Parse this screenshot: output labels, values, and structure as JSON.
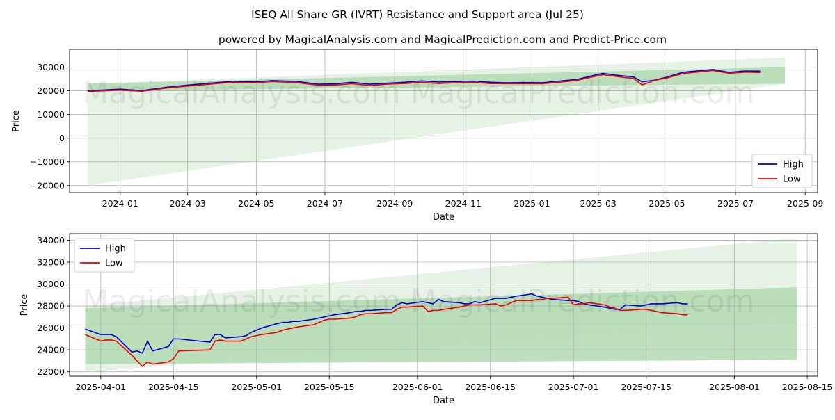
{
  "title": "ISEQ All Share GR (IVRT) Resistance and Support area (Jul 25)",
  "subtitle": "powered by MagicalAnalysis.com and MagicalPrediction.com and Predict-Price.com",
  "watermarks": [
    "MagicalAnalysis.com",
    "MagicalPrediction.com"
  ],
  "colors": {
    "high": "#0000cc",
    "low": "#ee0000",
    "band_light": "#e6f2e6",
    "band_dark": "#b2d9b2",
    "grid": "#b0b0b0"
  },
  "chart_data": [
    {
      "type": "line",
      "xlabel": "Date",
      "ylabel": "Price",
      "grid": true,
      "legend": "bottom-right",
      "x_range": [
        "2023-11-17",
        "2025-09-12"
      ],
      "ylim": [
        -23000,
        37500
      ],
      "x_ticks": [
        "2024-01",
        "2024-03",
        "2024-05",
        "2024-07",
        "2024-09",
        "2024-11",
        "2025-01",
        "2025-03",
        "2025-05",
        "2025-07",
        "2025-09"
      ],
      "y_ticks": [
        -20000,
        -10000,
        0,
        10000,
        20000,
        30000
      ],
      "bands": [
        {
          "shade": "light",
          "x": [
            "2023-12-03",
            "2025-08-14"
          ],
          "upper": [
            23000,
            34000
          ],
          "lower": [
            -20000,
            23000
          ]
        },
        {
          "shade": "dark",
          "x": [
            "2023-12-03",
            "2025-08-14"
          ],
          "upper": [
            23000,
            30000
          ],
          "lower": [
            20000,
            23000
          ]
        }
      ],
      "x": [
        "2023-12-03",
        "2024-01-01",
        "2024-01-20",
        "2024-02-15",
        "2024-03-01",
        "2024-03-20",
        "2024-04-10",
        "2024-04-30",
        "2024-05-15",
        "2024-06-05",
        "2024-06-25",
        "2024-07-10",
        "2024-07-25",
        "2024-08-10",
        "2024-08-25",
        "2024-09-10",
        "2024-09-25",
        "2024-10-10",
        "2024-10-25",
        "2024-11-10",
        "2024-11-25",
        "2024-12-10",
        "2024-12-25",
        "2025-01-10",
        "2025-01-25",
        "2025-02-10",
        "2025-02-25",
        "2025-03-05",
        "2025-03-15",
        "2025-03-25",
        "2025-04-01",
        "2025-04-09",
        "2025-04-20",
        "2025-05-01",
        "2025-05-15",
        "2025-05-30",
        "2025-06-11",
        "2025-06-25",
        "2025-07-10",
        "2025-07-23"
      ],
      "series": [
        {
          "name": "High",
          "values": [
            20000,
            20700,
            20100,
            21700,
            22400,
            23200,
            24000,
            23800,
            24300,
            24000,
            22800,
            22900,
            23600,
            22800,
            23200,
            23600,
            24200,
            23700,
            23900,
            24100,
            23600,
            23400,
            23500,
            23400,
            24100,
            24800,
            26500,
            27400,
            26700,
            26200,
            25900,
            23800,
            24500,
            25800,
            27800,
            28500,
            29000,
            27800,
            28400,
            28300
          ]
        },
        {
          "name": "Low",
          "values": [
            19700,
            20300,
            19800,
            21400,
            22000,
            22800,
            23600,
            23400,
            23900,
            23500,
            22400,
            22400,
            23000,
            22200,
            22800,
            23100,
            23600,
            23100,
            23400,
            23600,
            23100,
            23000,
            23000,
            23000,
            23600,
            24400,
            26000,
            26800,
            26200,
            25600,
            25300,
            22500,
            24400,
            25400,
            27300,
            28000,
            28600,
            27400,
            27900,
            27700
          ]
        }
      ]
    },
    {
      "type": "line",
      "xlabel": "Date",
      "ylabel": "Price",
      "grid": true,
      "legend": "top-left",
      "x_range": [
        "2025-03-26",
        "2025-08-17"
      ],
      "ylim": [
        21600,
        34600
      ],
      "x_ticks": [
        "2025-04-01",
        "2025-04-15",
        "2025-05-01",
        "2025-05-15",
        "2025-06-01",
        "2025-06-15",
        "2025-07-01",
        "2025-07-15",
        "2025-08-01",
        "2025-08-15"
      ],
      "y_ticks": [
        22000,
        24000,
        26000,
        28000,
        30000,
        32000,
        34000
      ],
      "bands": [
        {
          "shade": "light",
          "x": [
            "2025-03-29",
            "2025-08-13"
          ],
          "upper": [
            28000,
            34200
          ],
          "lower": [
            22000,
            26700
          ]
        },
        {
          "shade": "dark",
          "x": [
            "2025-03-29",
            "2025-08-13"
          ],
          "upper": [
            27800,
            29700
          ],
          "lower": [
            22700,
            23100
          ]
        }
      ],
      "x": [
        "2025-03-29",
        "2025-04-01",
        "2025-04-02",
        "2025-04-03",
        "2025-04-04",
        "2025-04-07",
        "2025-04-08",
        "2025-04-09",
        "2025-04-10",
        "2025-04-11",
        "2025-04-14",
        "2025-04-15",
        "2025-04-16",
        "2025-04-22",
        "2025-04-23",
        "2025-04-24",
        "2025-04-25",
        "2025-04-28",
        "2025-04-29",
        "2025-04-30",
        "2025-05-01",
        "2025-05-02",
        "2025-05-05",
        "2025-05-06",
        "2025-05-07",
        "2025-05-08",
        "2025-05-09",
        "2025-05-12",
        "2025-05-13",
        "2025-05-14",
        "2025-05-15",
        "2025-05-16",
        "2025-05-19",
        "2025-05-20",
        "2025-05-21",
        "2025-05-22",
        "2025-05-23",
        "2025-05-26",
        "2025-05-27",
        "2025-05-28",
        "2025-05-29",
        "2025-05-30",
        "2025-06-02",
        "2025-06-03",
        "2025-06-04",
        "2025-06-05",
        "2025-06-06",
        "2025-06-09",
        "2025-06-10",
        "2025-06-11",
        "2025-06-12",
        "2025-06-13",
        "2025-06-16",
        "2025-06-17",
        "2025-06-18",
        "2025-06-19",
        "2025-06-20",
        "2025-06-23",
        "2025-06-24",
        "2025-06-25",
        "2025-06-26",
        "2025-06-27",
        "2025-06-30",
        "2025-07-01",
        "2025-07-02",
        "2025-07-03",
        "2025-07-04",
        "2025-07-07",
        "2025-07-08",
        "2025-07-09",
        "2025-07-10",
        "2025-07-11",
        "2025-07-14",
        "2025-07-15",
        "2025-07-16",
        "2025-07-17",
        "2025-07-18",
        "2025-07-21",
        "2025-07-22",
        "2025-07-23"
      ],
      "series": [
        {
          "name": "High",
          "values": [
            25900,
            25400,
            25400,
            25400,
            25200,
            23800,
            23900,
            23700,
            24800,
            23900,
            24300,
            25000,
            25000,
            24700,
            25400,
            25400,
            25100,
            25200,
            25300,
            25600,
            25800,
            26000,
            26400,
            26500,
            26500,
            26600,
            26600,
            26800,
            26900,
            27000,
            27100,
            27200,
            27400,
            27500,
            27500,
            27600,
            27600,
            27700,
            27700,
            28100,
            28300,
            28200,
            28400,
            28300,
            28200,
            28600,
            28400,
            28300,
            28200,
            28200,
            28400,
            28300,
            28700,
            28700,
            28700,
            28800,
            28900,
            29100,
            28900,
            28800,
            28700,
            28600,
            28500,
            28500,
            28400,
            28200,
            28100,
            27900,
            27800,
            27700,
            27700,
            28100,
            28000,
            28100,
            28200,
            28200,
            28200,
            28300,
            28200,
            28200
          ]
        },
        {
          "name": "Low",
          "values": [
            25400,
            24800,
            24900,
            24900,
            24800,
            23500,
            23000,
            22500,
            22900,
            22700,
            22900,
            23200,
            23900,
            24000,
            24800,
            24900,
            24800,
            24800,
            25000,
            25200,
            25300,
            25400,
            25600,
            25800,
            25900,
            26000,
            26100,
            26300,
            26500,
            26700,
            26800,
            26800,
            26900,
            27000,
            27200,
            27300,
            27300,
            27400,
            27400,
            27700,
            27900,
            27900,
            28000,
            27500,
            27600,
            27600,
            27700,
            27900,
            28000,
            28100,
            28100,
            28100,
            28200,
            28000,
            28100,
            28300,
            28500,
            28500,
            28600,
            28600,
            28700,
            28700,
            28800,
            28100,
            28200,
            28200,
            28300,
            28100,
            27900,
            27800,
            27600,
            27600,
            27700,
            27700,
            27600,
            27500,
            27400,
            27300,
            27200,
            27200
          ]
        }
      ]
    }
  ]
}
